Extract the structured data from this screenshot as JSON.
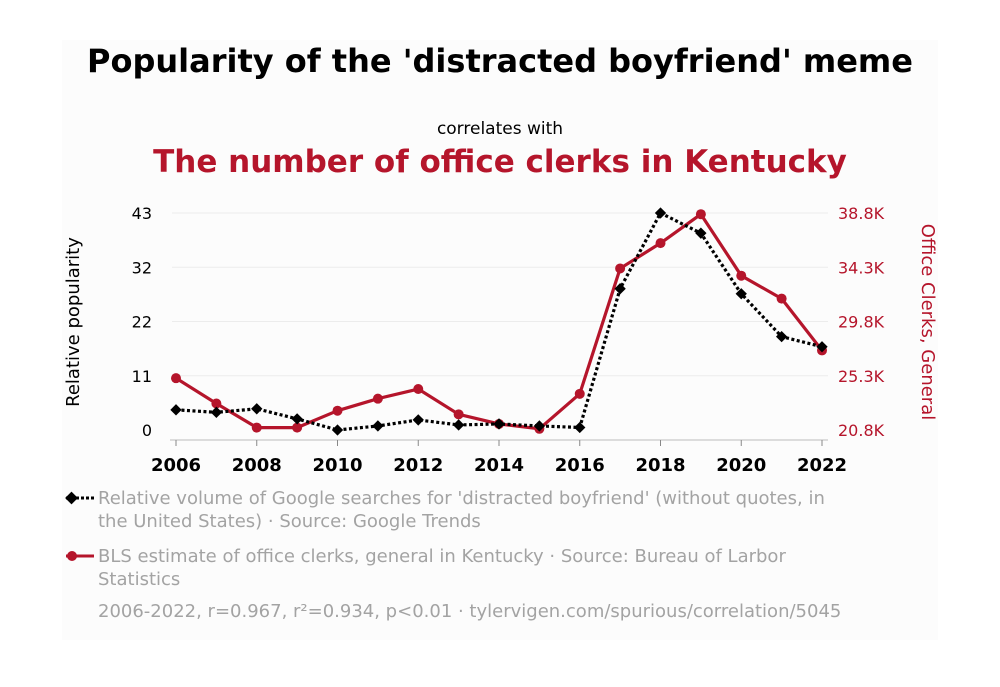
{
  "header": {
    "title": "Popularity of the 'distracted boyfriend' meme",
    "subtitle": "correlates with",
    "title2": "The number of office clerks in Kentucky"
  },
  "legend": {
    "series1": "Relative volume of Google searches for 'distracted boyfriend' (without quotes, in the United States) · Source: Google Trends",
    "series2": "BLS estimate of office clerks, general in Kentucky · Source: Bureau of Larbor Statistics"
  },
  "footer": "2006-2022, r=0.967, r²=0.934, p<0.01 · tylervigen.com/spurious/correlation/5045",
  "colors": {
    "series1": "#000000",
    "series2": "#b5152b",
    "grid": "#ececec"
  },
  "chart_data": {
    "type": "line",
    "title": "Popularity of the 'distracted boyfriend' meme",
    "x": [
      2006,
      2007,
      2008,
      2009,
      2010,
      2011,
      2012,
      2013,
      2014,
      2015,
      2016,
      2017,
      2018,
      2019,
      2020,
      2021,
      2022
    ],
    "x_ticks": [
      "2006",
      "2008",
      "2010",
      "2012",
      "2014",
      "2016",
      "2018",
      "2020",
      "2022"
    ],
    "y_left": {
      "label": "Relative popularity",
      "ticks": [
        "0",
        "11",
        "22",
        "32",
        "43"
      ],
      "ylim": [
        0,
        43
      ]
    },
    "y_right": {
      "label": "Office Clerks, General",
      "ticks": [
        "20.8K",
        "25.3K",
        "29.8K",
        "34.3K",
        "38.8K"
      ],
      "ylim": [
        20800,
        38800
      ]
    },
    "series": [
      {
        "axis": "left",
        "style": "dotted-diamond",
        "values": [
          4,
          3.5,
          4.2,
          2.2,
          0,
          0.8,
          2,
          1,
          1.2,
          0.8,
          0.5,
          28,
          43,
          39,
          27,
          18.5,
          16.5
        ]
      },
      {
        "axis": "right",
        "style": "solid-circle",
        "values": [
          25.1,
          23.0,
          21.0,
          21.0,
          22.4,
          23.4,
          24.2,
          22.1,
          21.3,
          20.9,
          23.8,
          34.2,
          36.3,
          38.7,
          33.6,
          31.7,
          27.4
        ]
      }
    ],
    "grid": true
  }
}
